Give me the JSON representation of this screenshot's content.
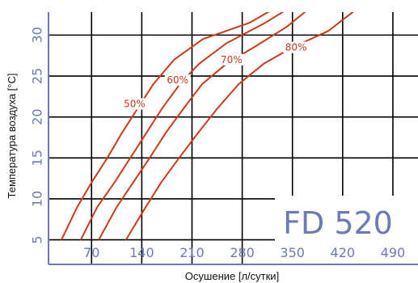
{
  "chart_data": {
    "type": "line",
    "model_label": "FD 520",
    "xlabel": "Осушение [л/сутки]",
    "ylabel": "Температура воздуха [°C]",
    "x_ticks": [
      "70",
      "140",
      "210",
      "280",
      "350",
      "420",
      "490"
    ],
    "y_ticks": [
      "5",
      "10",
      "15",
      "20",
      "25",
      "30"
    ],
    "xlim": [
      10,
      525
    ],
    "ylim": [
      2,
      32.8
    ],
    "grid": true,
    "colors": {
      "curves": "#cc3a1a",
      "ticks": "#6c7bb3",
      "grid": "#000000",
      "frame": "#6c7bb3"
    },
    "series": [
      {
        "name": "50%",
        "points": [
          [
            28,
            5
          ],
          [
            50,
            9
          ],
          [
            70,
            12
          ],
          [
            92,
            15
          ],
          [
            112,
            18
          ],
          [
            134,
            21
          ],
          [
            156,
            24
          ],
          [
            185,
            27
          ],
          [
            225,
            29.5
          ],
          [
            290,
            31.5
          ],
          [
            320,
            33
          ]
        ]
      },
      {
        "name": "60%",
        "points": [
          [
            55,
            5
          ],
          [
            78,
            9
          ],
          [
            102,
            12
          ],
          [
            124,
            15
          ],
          [
            146,
            18
          ],
          [
            168,
            21
          ],
          [
            193,
            24
          ],
          [
            220,
            26.5
          ],
          [
            258,
            29
          ],
          [
            312,
            31.5
          ],
          [
            340,
            33
          ]
        ]
      },
      {
        "name": "70%",
        "points": [
          [
            80,
            5
          ],
          [
            105,
            9
          ],
          [
            128,
            12
          ],
          [
            151,
            15
          ],
          [
            173,
            18
          ],
          [
            198,
            21
          ],
          [
            224,
            24
          ],
          [
            258,
            26.5
          ],
          [
            296,
            28.5
          ],
          [
            342,
            31
          ],
          [
            370,
            33
          ]
        ]
      },
      {
        "name": "80%",
        "points": [
          [
            118,
            5
          ],
          [
            142,
            8.5
          ],
          [
            167,
            12
          ],
          [
            192,
            15
          ],
          [
            218,
            18
          ],
          [
            245,
            21
          ],
          [
            275,
            24
          ],
          [
            310,
            26.5
          ],
          [
            350,
            28.5
          ],
          [
            400,
            30.5
          ],
          [
            437,
            33
          ]
        ]
      }
    ],
    "curve_labels": [
      {
        "text": "50%",
        "x": 130,
        "y": 21.3
      },
      {
        "text": "60%",
        "x": 190,
        "y": 24.2
      },
      {
        "text": "70%",
        "x": 265,
        "y": 26.7
      },
      {
        "text": "80%",
        "x": 355,
        "y": 28.2
      }
    ]
  }
}
